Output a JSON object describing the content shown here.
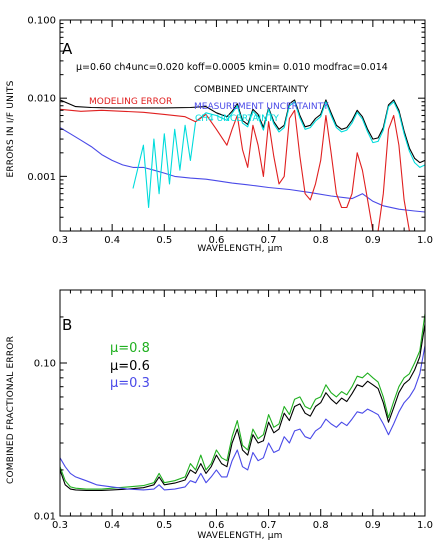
{
  "chart_data": [
    {
      "panel": "A",
      "type": "line",
      "header": "μ=0.60  ch4unc=0.020  koff=0.0005  kmin= 0.010    modfrac=0.014",
      "xlabel": "WAVELENGTH, μm",
      "ylabel": "ERRORS IN I/F UNITS",
      "xlim": [
        0.3,
        1.0
      ],
      "ylim": [
        0.0002,
        0.1
      ],
      "yscale": "log",
      "x_ticks": [
        "0.3",
        "0.4",
        "0.5",
        "0.6",
        "0.7",
        "0.8",
        "0.9",
        "1.0"
      ],
      "y_ticks": [
        "0.001",
        "0.010",
        "0.100"
      ],
      "series": [
        {
          "name": "COMBINED UNCERTAINTY",
          "color": "#000000",
          "x": [
            0.3,
            0.33,
            0.36,
            0.4,
            0.45,
            0.5,
            0.55,
            0.58,
            0.6,
            0.62,
            0.63,
            0.64,
            0.65,
            0.66,
            0.67,
            0.68,
            0.69,
            0.7,
            0.71,
            0.72,
            0.73,
            0.74,
            0.75,
            0.76,
            0.77,
            0.78,
            0.79,
            0.8,
            0.81,
            0.82,
            0.83,
            0.84,
            0.85,
            0.86,
            0.87,
            0.88,
            0.89,
            0.9,
            0.91,
            0.92,
            0.93,
            0.94,
            0.95,
            0.96,
            0.97,
            0.98,
            0.99,
            1.0
          ],
          "values": [
            0.0095,
            0.0078,
            0.0076,
            0.0075,
            0.0075,
            0.0075,
            0.0076,
            0.0078,
            0.0065,
            0.0058,
            0.0068,
            0.0085,
            0.0052,
            0.0046,
            0.0072,
            0.0062,
            0.0042,
            0.0075,
            0.005,
            0.004,
            0.0045,
            0.0085,
            0.0095,
            0.006,
            0.0043,
            0.0045,
            0.0055,
            0.0062,
            0.0095,
            0.0065,
            0.0045,
            0.004,
            0.0042,
            0.0052,
            0.007,
            0.0058,
            0.004,
            0.003,
            0.0031,
            0.0042,
            0.0082,
            0.0095,
            0.007,
            0.0038,
            0.0023,
            0.0017,
            0.0015,
            0.0016
          ]
        },
        {
          "name": "MEASUREMENT UNCERTAINTY",
          "color": "#4a4ae8",
          "x": [
            0.3,
            0.32,
            0.34,
            0.36,
            0.38,
            0.4,
            0.42,
            0.44,
            0.46,
            0.48,
            0.5,
            0.52,
            0.55,
            0.58,
            0.6,
            0.63,
            0.66,
            0.7,
            0.74,
            0.78,
            0.82,
            0.86,
            0.88,
            0.9,
            0.92,
            0.95,
            0.98,
            1.0
          ],
          "values": [
            0.0042,
            0.0035,
            0.0029,
            0.0024,
            0.0019,
            0.0016,
            0.0014,
            0.0013,
            0.0013,
            0.0012,
            0.0011,
            0.001,
            0.00095,
            0.00092,
            0.00088,
            0.00082,
            0.00078,
            0.00072,
            0.00068,
            0.00062,
            0.00056,
            0.00052,
            0.0006,
            0.00048,
            0.00042,
            0.00038,
            0.00036,
            0.00035
          ]
        },
        {
          "name": "CH4 UNCERTAINTY",
          "color": "#00dcdc",
          "x": [
            0.44,
            0.46,
            0.47,
            0.48,
            0.49,
            0.5,
            0.51,
            0.52,
            0.53,
            0.54,
            0.55,
            0.56,
            0.58,
            0.6,
            0.62,
            0.63,
            0.64,
            0.65,
            0.66,
            0.67,
            0.68,
            0.69,
            0.7,
            0.71,
            0.72,
            0.73,
            0.74,
            0.75,
            0.76,
            0.77,
            0.78,
            0.79,
            0.8,
            0.81,
            0.82,
            0.83,
            0.84,
            0.85,
            0.86,
            0.87,
            0.88,
            0.89,
            0.9,
            0.91,
            0.92,
            0.93,
            0.94,
            0.95,
            0.96,
            0.97,
            0.98,
            0.99,
            1.0
          ],
          "values": [
            0.0007,
            0.0025,
            0.0004,
            0.003,
            0.0006,
            0.0035,
            0.0008,
            0.004,
            0.0012,
            0.0045,
            0.0016,
            0.005,
            0.0065,
            0.006,
            0.0052,
            0.0064,
            0.008,
            0.0048,
            0.0043,
            0.0068,
            0.0058,
            0.0039,
            0.0072,
            0.0047,
            0.0037,
            0.0042,
            0.008,
            0.009,
            0.0056,
            0.004,
            0.0042,
            0.0051,
            0.0058,
            0.009,
            0.006,
            0.0042,
            0.0037,
            0.0039,
            0.0048,
            0.0066,
            0.0054,
            0.0037,
            0.0027,
            0.0028,
            0.0039,
            0.0078,
            0.009,
            0.0065,
            0.0035,
            0.0021,
            0.0015,
            0.0013,
            0.0014
          ]
        },
        {
          "name": "MODELING ERROR",
          "color": "#e02020",
          "x": [
            0.3,
            0.34,
            0.38,
            0.42,
            0.46,
            0.5,
            0.54,
            0.56,
            0.58,
            0.6,
            0.62,
            0.63,
            0.64,
            0.65,
            0.66,
            0.67,
            0.68,
            0.69,
            0.7,
            0.71,
            0.72,
            0.73,
            0.74,
            0.75,
            0.76,
            0.77,
            0.78,
            0.79,
            0.8,
            0.81,
            0.82,
            0.83,
            0.84,
            0.85,
            0.86,
            0.87,
            0.88,
            0.89,
            0.9,
            0.91,
            0.92,
            0.93,
            0.94,
            0.95,
            0.96,
            0.97,
            0.98,
            1.0
          ],
          "values": [
            0.0072,
            0.0068,
            0.007,
            0.0068,
            0.0066,
            0.0062,
            0.0058,
            0.005,
            0.0062,
            0.004,
            0.0025,
            0.004,
            0.006,
            0.0022,
            0.0013,
            0.0045,
            0.0025,
            0.001,
            0.005,
            0.0018,
            0.0008,
            0.001,
            0.0055,
            0.007,
            0.0018,
            0.0006,
            0.0005,
            0.0008,
            0.0016,
            0.006,
            0.002,
            0.0006,
            0.0004,
            0.0004,
            0.0006,
            0.002,
            0.0012,
            0.0005,
            0.0002,
            0.0002,
            0.0006,
            0.004,
            0.006,
            0.0025,
            0.0005,
            0.0002,
            0.0002,
            0.0002
          ]
        }
      ]
    },
    {
      "panel": "B",
      "type": "line",
      "xlabel": "WAVELENGTH, μm",
      "ylabel": "COMBINED FRACTIONAL ERROR",
      "xlim": [
        0.3,
        1.0
      ],
      "ylim": [
        0.01,
        0.3
      ],
      "yscale": "log",
      "x_ticks": [
        "0.3",
        "0.4",
        "0.5",
        "0.6",
        "0.7",
        "0.8",
        "0.9",
        "1.0"
      ],
      "y_ticks": [
        "0.01",
        "0.10"
      ],
      "series": [
        {
          "name": "μ=0.8",
          "color": "#20b020",
          "x": [
            0.3,
            0.31,
            0.32,
            0.33,
            0.35,
            0.38,
            0.4,
            0.43,
            0.46,
            0.48,
            0.49,
            0.5,
            0.52,
            0.54,
            0.55,
            0.56,
            0.57,
            0.58,
            0.59,
            0.6,
            0.61,
            0.62,
            0.63,
            0.64,
            0.65,
            0.66,
            0.67,
            0.68,
            0.69,
            0.7,
            0.71,
            0.72,
            0.73,
            0.74,
            0.75,
            0.76,
            0.77,
            0.78,
            0.79,
            0.8,
            0.81,
            0.82,
            0.83,
            0.84,
            0.85,
            0.86,
            0.87,
            0.88,
            0.89,
            0.9,
            0.91,
            0.92,
            0.93,
            0.94,
            0.95,
            0.96,
            0.97,
            0.98,
            0.99,
            1.0
          ],
          "values": [
            0.021,
            0.017,
            0.0155,
            0.0152,
            0.015,
            0.015,
            0.0152,
            0.0155,
            0.0158,
            0.0165,
            0.019,
            0.0165,
            0.017,
            0.018,
            0.022,
            0.02,
            0.025,
            0.02,
            0.022,
            0.027,
            0.024,
            0.023,
            0.033,
            0.042,
            0.029,
            0.027,
            0.037,
            0.032,
            0.034,
            0.046,
            0.038,
            0.04,
            0.052,
            0.046,
            0.058,
            0.06,
            0.052,
            0.05,
            0.058,
            0.06,
            0.072,
            0.064,
            0.06,
            0.065,
            0.062,
            0.07,
            0.082,
            0.08,
            0.086,
            0.08,
            0.075,
            0.06,
            0.044,
            0.056,
            0.07,
            0.08,
            0.085,
            0.1,
            0.12,
            0.21
          ]
        },
        {
          "name": "μ=0.6",
          "color": "#000000",
          "x": [
            0.3,
            0.31,
            0.32,
            0.33,
            0.35,
            0.38,
            0.4,
            0.43,
            0.46,
            0.48,
            0.49,
            0.5,
            0.52,
            0.54,
            0.55,
            0.56,
            0.57,
            0.58,
            0.59,
            0.6,
            0.61,
            0.62,
            0.63,
            0.64,
            0.65,
            0.66,
            0.67,
            0.68,
            0.69,
            0.7,
            0.71,
            0.72,
            0.73,
            0.74,
            0.75,
            0.76,
            0.77,
            0.78,
            0.79,
            0.8,
            0.81,
            0.82,
            0.83,
            0.84,
            0.85,
            0.86,
            0.87,
            0.88,
            0.89,
            0.9,
            0.91,
            0.92,
            0.93,
            0.94,
            0.95,
            0.96,
            0.97,
            0.98,
            0.99,
            1.0
          ],
          "values": [
            0.02,
            0.016,
            0.015,
            0.0148,
            0.0147,
            0.0147,
            0.0148,
            0.015,
            0.0153,
            0.016,
            0.018,
            0.016,
            0.0164,
            0.0172,
            0.02,
            0.019,
            0.022,
            0.019,
            0.021,
            0.025,
            0.022,
            0.021,
            0.03,
            0.037,
            0.027,
            0.025,
            0.034,
            0.03,
            0.031,
            0.041,
            0.035,
            0.037,
            0.047,
            0.042,
            0.052,
            0.054,
            0.047,
            0.045,
            0.052,
            0.055,
            0.064,
            0.058,
            0.054,
            0.059,
            0.056,
            0.063,
            0.072,
            0.07,
            0.076,
            0.072,
            0.068,
            0.055,
            0.041,
            0.051,
            0.064,
            0.073,
            0.078,
            0.09,
            0.11,
            0.18
          ]
        },
        {
          "name": "μ=0.3",
          "color": "#4a4ae8",
          "x": [
            0.3,
            0.31,
            0.32,
            0.33,
            0.34,
            0.35,
            0.36,
            0.37,
            0.38,
            0.4,
            0.43,
            0.46,
            0.48,
            0.49,
            0.5,
            0.52,
            0.54,
            0.55,
            0.56,
            0.57,
            0.58,
            0.59,
            0.6,
            0.61,
            0.62,
            0.63,
            0.64,
            0.65,
            0.66,
            0.67,
            0.68,
            0.69,
            0.7,
            0.71,
            0.72,
            0.73,
            0.74,
            0.75,
            0.76,
            0.77,
            0.78,
            0.79,
            0.8,
            0.81,
            0.82,
            0.83,
            0.84,
            0.85,
            0.86,
            0.87,
            0.88,
            0.89,
            0.9,
            0.91,
            0.92,
            0.93,
            0.94,
            0.95,
            0.96,
            0.97,
            0.98,
            0.99,
            1.0
          ],
          "values": [
            0.024,
            0.021,
            0.019,
            0.018,
            0.0175,
            0.017,
            0.0165,
            0.016,
            0.0158,
            0.0155,
            0.015,
            0.0148,
            0.015,
            0.016,
            0.0148,
            0.015,
            0.0155,
            0.017,
            0.0165,
            0.019,
            0.0165,
            0.018,
            0.02,
            0.018,
            0.018,
            0.023,
            0.027,
            0.021,
            0.02,
            0.026,
            0.023,
            0.024,
            0.03,
            0.026,
            0.027,
            0.033,
            0.03,
            0.036,
            0.037,
            0.033,
            0.032,
            0.036,
            0.038,
            0.043,
            0.04,
            0.038,
            0.041,
            0.039,
            0.043,
            0.048,
            0.047,
            0.05,
            0.048,
            0.046,
            0.04,
            0.034,
            0.04,
            0.048,
            0.055,
            0.06,
            0.068,
            0.085,
            0.13
          ]
        }
      ]
    }
  ]
}
